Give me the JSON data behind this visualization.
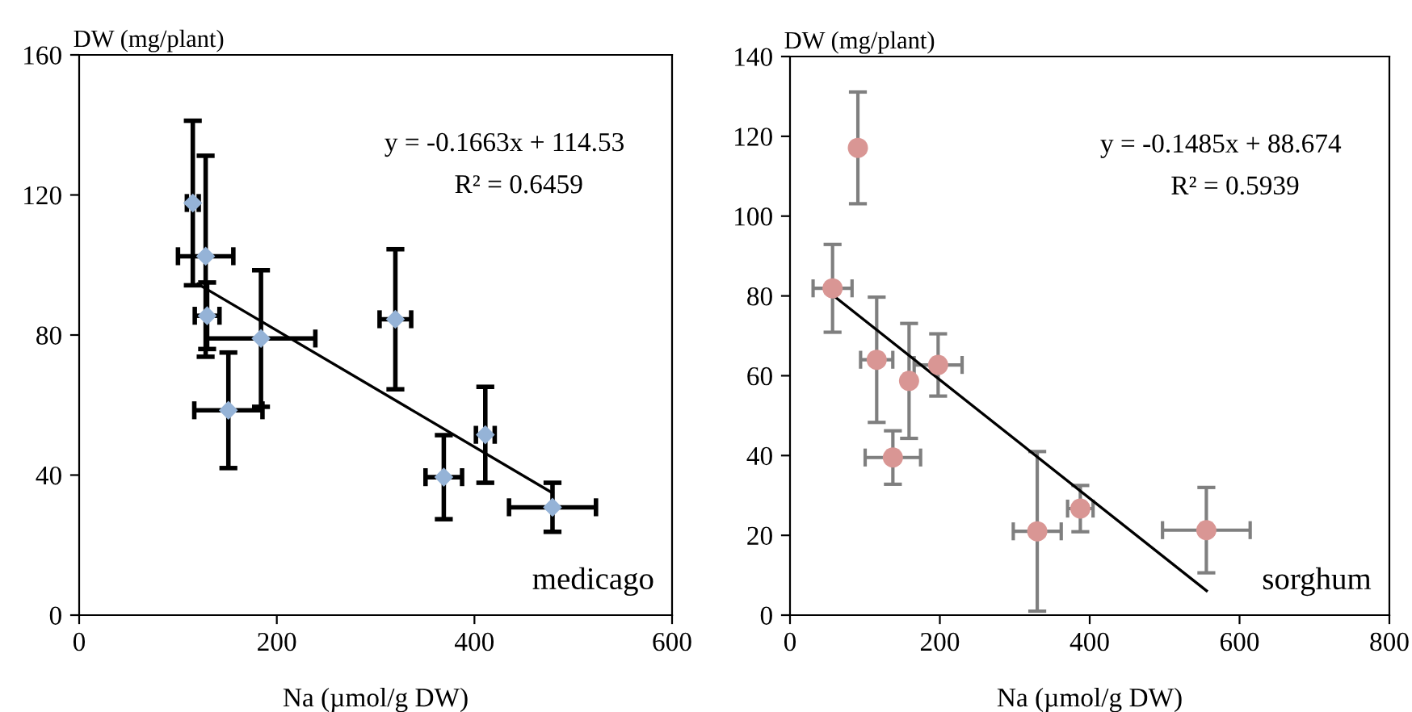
{
  "chart_data": [
    {
      "type": "scatter",
      "xlabel": "Na (µmol/g DW)",
      "ylabel": "DW (mg/plant)",
      "xlim": [
        0,
        600
      ],
      "ylim": [
        0,
        160
      ],
      "xticks": [
        0,
        200,
        400,
        600
      ],
      "yticks": [
        0,
        40,
        80,
        120,
        160
      ],
      "grid": false,
      "marker": "diamond",
      "annotations": [
        "y = -0.1663x + 114.53",
        "R² = 0.6459",
        "medicago"
      ],
      "series": [
        {
          "color": "#95b3d7",
          "x": [
            115,
            128,
            129.5,
            184,
            151,
            320,
            369,
            411,
            479
          ],
          "values": [
            117.7,
            102.5,
            85.5,
            79,
            58.5,
            84.5,
            39.4,
            51.5,
            30.8
          ],
          "errors": [
            23.5,
            28.7,
            9.5,
            19.5,
            16.5,
            20,
            12,
            13.7,
            7
          ],
          "xerrors": [
            6,
            28,
            12.5,
            55,
            34.5,
            16,
            18.5,
            9.5,
            44
          ]
        },
        {
          "type": "line",
          "color": "#000000",
          "marker": "none",
          "x": [
            120,
            479
          ],
          "values": [
            94.6,
            34.9
          ]
        }
      ]
    },
    {
      "type": "scatter",
      "xlabel": "Na (µmol/g DW)",
      "ylabel": "DW (mg/plant)",
      "xlim": [
        0,
        800
      ],
      "ylim": [
        0,
        140
      ],
      "xticks": [
        0,
        200,
        400,
        600,
        800
      ],
      "yticks": [
        0,
        20,
        40,
        60,
        80,
        100,
        120,
        140
      ],
      "grid": false,
      "marker": "circle",
      "annotations": [
        "y = -0.1485x + 88.674",
        "R² = 0.5939",
        "sorghum"
      ],
      "series": [
        {
          "color": "#d99694",
          "x": [
            90.6,
            56.8,
            115.7,
            158.9,
            197.7,
            137.3,
            330,
            387.5,
            555.7
          ],
          "values": [
            117.1,
            81.9,
            64,
            58.7,
            62.7,
            39.5,
            21,
            26.7,
            21.3
          ],
          "errors": [
            14,
            11,
            15.7,
            14.4,
            7.8,
            6.7,
            20,
            5.8,
            10.7
          ],
          "xerrors": [
            null,
            26,
            21.5,
            null,
            32,
            37,
            32,
            17,
            58.5
          ]
        },
        {
          "type": "line",
          "color": "#000000",
          "marker": "none",
          "x": [
            57,
            556
          ],
          "values": [
            80.2,
            6.1
          ]
        }
      ]
    }
  ]
}
